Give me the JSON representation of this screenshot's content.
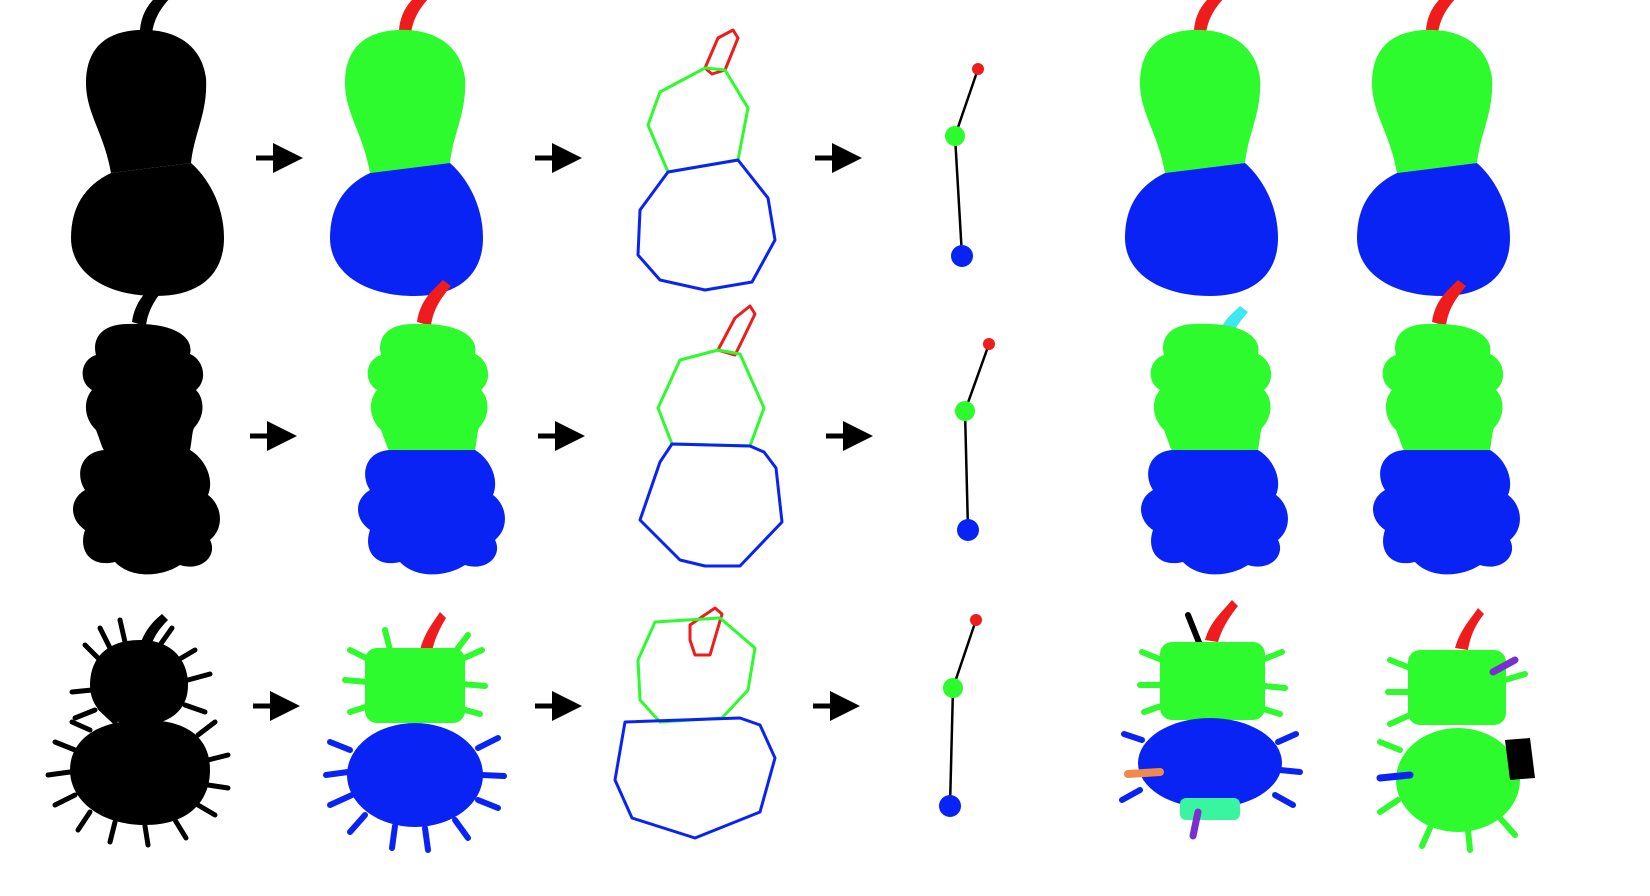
{
  "figure": {
    "rows": [
      {
        "id": "smooth-gourd",
        "variant": "smooth"
      },
      {
        "id": "wavy-gourd",
        "variant": "wavy"
      },
      {
        "id": "hairy-gourd",
        "variant": "hairy"
      }
    ],
    "columns": [
      "silhouette",
      "segmentation",
      "convex-outlines",
      "skeleton-graph",
      "result-a",
      "result-b"
    ],
    "colors": {
      "silhouette": "#000000",
      "stem": "#ee1c1c",
      "body_top": "#2dfb2d",
      "body_bottom": "#0a23f5",
      "extra_cyan": "#3de8f0",
      "extra_orange": "#f08a4b",
      "extra_purple": "#7a2fd0",
      "extra_teal": "#3af5a0",
      "arrow": "#000000"
    }
  }
}
